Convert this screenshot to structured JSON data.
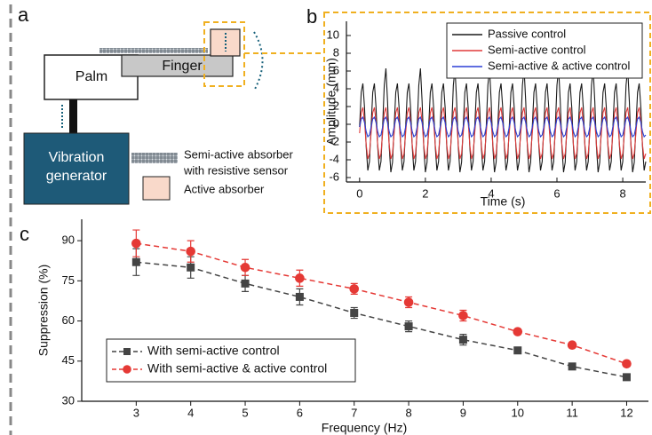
{
  "panel_a": {
    "label": "a",
    "palm": "Palm",
    "finger": "Finger",
    "generator": [
      "Vibration",
      "generator"
    ],
    "legend": {
      "semi_active": [
        "Semi-active absorber",
        "with resistive sensor"
      ],
      "active": "Active absorber"
    }
  },
  "chart_data": [
    {
      "type": "line",
      "panel_label": "b",
      "xlabel": "Time (s)",
      "ylabel": "Amplitude (mm)",
      "xlim": [
        -0.4,
        8.7
      ],
      "ylim": [
        -6.5,
        11.6
      ],
      "xticks": [
        0,
        2,
        4,
        6,
        8
      ],
      "yticks": [
        -6,
        -4,
        -2,
        0,
        2,
        4,
        6,
        8,
        10
      ],
      "legend": "top-right",
      "x": [
        0,
        0.05,
        0.1,
        0.15,
        0.2,
        0.25,
        0.3,
        0.35,
        0.4,
        0.45,
        0.5,
        0.55,
        0.6,
        0.65,
        0.7,
        0.75,
        0.8,
        0.85,
        0.9,
        0.95,
        1,
        1.05,
        1.1,
        1.15,
        1.2,
        1.25,
        1.3,
        1.35,
        1.4,
        1.45,
        1.5,
        1.55,
        1.6,
        1.65,
        1.7,
        1.75,
        1.8,
        1.85,
        1.9,
        1.95,
        2,
        2.05,
        2.1,
        2.15,
        2.2,
        2.25,
        2.3,
        2.35,
        2.4,
        2.45,
        2.5,
        2.55,
        2.6,
        2.65,
        2.7,
        2.75,
        2.8,
        2.85,
        2.9,
        2.95,
        3,
        3.05,
        3.1,
        3.15,
        3.2,
        3.25,
        3.3,
        3.35,
        3.4,
        3.45,
        3.5,
        3.55,
        3.6,
        3.65,
        3.7,
        3.75,
        3.8,
        3.85,
        3.9,
        3.95,
        4,
        4.05,
        4.1,
        4.15,
        4.2,
        4.25,
        4.3,
        4.35,
        4.4,
        4.45,
        4.5,
        4.55,
        4.6,
        4.65,
        4.7,
        4.75,
        4.8,
        4.85,
        4.9,
        4.95,
        5,
        5.05,
        5.1,
        5.15,
        5.2,
        5.25,
        5.3,
        5.35,
        5.4,
        5.45,
        5.5,
        5.55,
        5.6,
        5.65,
        5.7,
        5.75,
        5.8,
        5.85,
        5.9,
        5.95,
        6,
        6.05,
        6.1,
        6.15,
        6.2,
        6.25,
        6.3,
        6.35,
        6.4,
        6.45,
        6.5,
        6.55,
        6.6,
        6.65,
        6.7,
        6.75,
        6.8,
        6.85,
        6.9,
        6.95,
        7,
        7.05,
        7.1,
        7.15,
        7.2,
        7.25,
        7.3,
        7.35,
        7.4,
        7.45,
        7.5,
        7.55,
        7.6,
        7.65,
        7.7,
        7.75,
        7.8,
        7.85,
        7.9,
        7.95,
        8,
        8.05,
        8.1,
        8.15,
        8.2,
        8.25,
        8.3,
        8.35,
        8.4,
        8.45,
        8.5,
        8.55,
        8.6,
        8.65,
        8.7
      ],
      "series": [
        {
          "name": "Passive control",
          "color": "#1a1a1a",
          "values": [
            -0.3,
            3.6,
            4.6,
            1.9,
            -2.5,
            -5.2,
            -4.2,
            -0.3,
            3.6,
            4.6,
            1.9,
            -2.5,
            -5.2,
            -4.2,
            -0.3,
            4.4,
            6.3,
            2.6,
            -2.5,
            -5.4,
            -4.3,
            -0.3,
            3.6,
            4.6,
            1.9,
            -2.5,
            -5.2,
            -4.2,
            -0.3,
            3.6,
            4.6,
            1.9,
            -2.5,
            -5.2,
            -4.2,
            -0.3,
            4.4,
            6.3,
            2.6,
            -2.5,
            -5.4,
            -4.3,
            -0.3,
            3.6,
            4.6,
            1.9,
            -2.5,
            -5.2,
            -4.2,
            -0.3,
            3.6,
            4.6,
            1.9,
            -2.5,
            -5.2,
            -4.2,
            -0.3,
            4.4,
            6.3,
            2.6,
            -2.5,
            -5.4,
            -4.3,
            -0.3,
            3.6,
            4.6,
            1.9,
            -2.5,
            -5.2,
            -4.2,
            -0.3,
            3.6,
            4.6,
            1.9,
            -2.5,
            -5.2,
            -4.2,
            -0.3,
            4.4,
            6.3,
            2.6,
            -2.5,
            -5.4,
            -4.3,
            -0.3,
            3.6,
            4.6,
            1.9,
            -2.5,
            -5.2,
            -4.2,
            -0.3,
            3.6,
            4.6,
            1.9,
            -2.5,
            -5.2,
            -4.2,
            -0.3,
            4.4,
            6.3,
            2.6,
            -2.5,
            -5.4,
            -4.3,
            -0.3,
            3.6,
            4.6,
            1.9,
            -2.5,
            -5.2,
            -4.2,
            -0.3,
            3.6,
            4.6,
            1.9,
            -2.5,
            -5.2,
            -4.2,
            -0.3,
            4.4,
            6.3,
            2.6,
            -2.5,
            -5.4,
            -4.3,
            -0.3,
            3.6,
            4.6,
            1.9,
            -2.5,
            -5.2,
            -4.2,
            -0.3,
            3.6,
            4.6,
            1.9,
            -2.5,
            -5.2,
            -4.2,
            -0.3,
            4.4,
            6.3,
            2.6,
            -2.5,
            -5.4,
            -4.3,
            -0.3,
            3.6,
            4.6,
            1.9,
            -2.5,
            -5.2,
            -4.2,
            -0.3,
            3.6,
            4.6,
            1.9,
            -2.5,
            -5.2,
            -4.2,
            -0.3,
            4.4,
            6.3,
            2.6,
            -2.5,
            -5.4,
            -4.3,
            -0.3,
            3.6,
            4.6,
            1.9,
            -2.5,
            -5.2,
            -4.2
          ]
        },
        {
          "name": "Semi-active control",
          "color": "#e03a3a",
          "values": [
            -1,
            1.3,
            1.9,
            0.3,
            -2.3,
            -3.9,
            -3.3,
            -1,
            1.3,
            1.9,
            0.3,
            -2.3,
            -3.9,
            -3.3,
            -1,
            1.3,
            1.9,
            0.3,
            -2.3,
            -3.9,
            -3.3,
            -1,
            1.3,
            1.9,
            0.3,
            -2.3,
            -3.9,
            -3.3,
            -1,
            1.3,
            1.9,
            0.3,
            -2.3,
            -3.9,
            -3.3,
            -1,
            1.3,
            1.9,
            0.3,
            -2.3,
            -3.9,
            -3.3,
            -1,
            1.3,
            1.9,
            0.3,
            -2.3,
            -3.9,
            -3.3,
            -1,
            1.3,
            1.9,
            0.3,
            -2.3,
            -3.9,
            -3.3,
            -1,
            1.3,
            1.9,
            0.3,
            -2.3,
            -3.9,
            -3.3,
            -1,
            1.3,
            1.9,
            0.3,
            -2.3,
            -3.9,
            -3.3,
            -1,
            1.3,
            1.9,
            0.3,
            -2.3,
            -3.9,
            -3.3,
            -1,
            1.3,
            1.9,
            0.3,
            -2.3,
            -3.9,
            -3.3,
            -1,
            1.3,
            1.9,
            0.3,
            -2.3,
            -3.9,
            -3.3,
            -1,
            1.3,
            1.9,
            0.3,
            -2.3,
            -3.9,
            -3.3,
            -1,
            1.3,
            1.9,
            0.3,
            -2.3,
            -3.9,
            -3.3,
            -1,
            1.3,
            1.9,
            0.3,
            -2.3,
            -3.9,
            -3.3,
            -1,
            1.3,
            1.9,
            0.3,
            -2.3,
            -3.9,
            -3.3,
            -1,
            1.3,
            1.9,
            0.3,
            -2.3,
            -3.9,
            -3.3,
            -1,
            1.3,
            1.9,
            0.3,
            -2.3,
            -3.9,
            -3.3,
            -1,
            1.3,
            1.9,
            0.3,
            -2.3,
            -3.9,
            -3.3,
            -1,
            1.3,
            1.9,
            0.3,
            -2.3,
            -3.9,
            -3.3,
            -1,
            1.3,
            1.9,
            0.3,
            -2.3,
            -3.9,
            -3.3,
            -1,
            1.3,
            1.9,
            0.3,
            -2.3,
            -3.9,
            -3.3,
            -1,
            1.3,
            1.9,
            0.3,
            -2.3,
            -3.9,
            -3.3,
            -1,
            1.3,
            1.9,
            0.3,
            -2.3,
            -3.9,
            -3.3
          ]
        },
        {
          "name": "Semi-active & active control",
          "color": "#2b3fd6",
          "values": [
            -0.3,
            0.6,
            0.8,
            0.2,
            -0.8,
            -1.4,
            -1.2,
            -0.3,
            0.6,
            0.8,
            0.2,
            -0.8,
            -1.4,
            -1.2,
            -0.3,
            0.6,
            0.8,
            0.2,
            -0.8,
            -1.4,
            -1.2,
            -0.3,
            0.6,
            0.8,
            0.2,
            -0.8,
            -1.4,
            -1.2,
            -0.3,
            0.6,
            0.8,
            0.2,
            -0.8,
            -1.4,
            -1.2,
            -0.3,
            0.6,
            0.8,
            0.2,
            -0.8,
            -1.4,
            -1.2,
            -0.3,
            0.6,
            0.8,
            0.2,
            -0.8,
            -1.4,
            -1.2,
            -0.3,
            0.6,
            0.8,
            0.2,
            -0.8,
            -1.4,
            -1.2,
            -0.3,
            0.6,
            0.8,
            0.2,
            -0.8,
            -1.4,
            -1.2,
            -0.3,
            0.6,
            0.8,
            0.2,
            -0.8,
            -1.4,
            -1.2,
            -0.3,
            0.6,
            0.8,
            0.2,
            -0.8,
            -1.4,
            -1.2,
            -0.3,
            0.6,
            0.8,
            0.2,
            -0.8,
            -1.4,
            -1.2,
            -0.3,
            0.6,
            0.8,
            0.2,
            -0.8,
            -1.4,
            -1.2,
            -0.3,
            0.6,
            0.8,
            0.2,
            -0.8,
            -1.4,
            -1.2,
            -0.3,
            0.6,
            0.8,
            0.2,
            -0.8,
            -1.4,
            -1.2,
            -0.3,
            0.6,
            0.8,
            0.2,
            -0.8,
            -1.4,
            -1.2,
            -0.3,
            0.6,
            0.8,
            0.2,
            -0.8,
            -1.4,
            -1.2,
            -0.3,
            0.6,
            0.8,
            0.2,
            -0.8,
            -1.4,
            -1.2,
            -0.3,
            0.6,
            0.8,
            0.2,
            -0.8,
            -1.4,
            -1.2,
            -0.3,
            0.6,
            0.8,
            0.2,
            -0.8,
            -1.4,
            -1.2,
            -0.3,
            0.6,
            0.8,
            0.2,
            -0.8,
            -1.4,
            -1.2,
            -0.3,
            0.6,
            0.8,
            0.2,
            -0.8,
            -1.4,
            -1.2,
            -0.3,
            0.6,
            0.8,
            0.2,
            -0.8,
            -1.4,
            -1.2,
            -0.3,
            0.6,
            0.8,
            0.2,
            -0.8,
            -1.4,
            -1.2,
            -0.3,
            0.6,
            0.8,
            0.2,
            -0.8,
            -1.4,
            -1.2
          ]
        }
      ]
    },
    {
      "type": "scatter",
      "panel_label": "c",
      "xlabel": "Frequency (Hz)",
      "ylabel": "Suppression (%)",
      "xlim": [
        2,
        12.4
      ],
      "ylim": [
        30,
        98
      ],
      "xticks": [
        3,
        4,
        5,
        6,
        7,
        8,
        9,
        10,
        11,
        12
      ],
      "yticks": [
        30,
        45,
        60,
        75,
        90
      ],
      "legend": "bottom-left",
      "line_style": "dashed",
      "x": [
        3,
        4,
        5,
        6,
        7,
        8,
        9,
        10,
        11,
        12
      ],
      "series": [
        {
          "name": "With semi-active control",
          "color": "#444444",
          "marker": "square",
          "values": [
            82,
            80,
            74,
            69,
            63,
            58,
            53,
            49,
            43,
            39
          ],
          "errors": [
            5,
            4,
            3,
            3,
            2,
            2,
            2,
            1,
            1,
            1
          ]
        },
        {
          "name": "With semi-active & active control",
          "color": "#e53935",
          "marker": "circle",
          "values": [
            89,
            86,
            80,
            76,
            72,
            67,
            62,
            56,
            51,
            44
          ],
          "errors": [
            5,
            4,
            3,
            3,
            2,
            2,
            2,
            1,
            1,
            1
          ]
        }
      ]
    }
  ]
}
